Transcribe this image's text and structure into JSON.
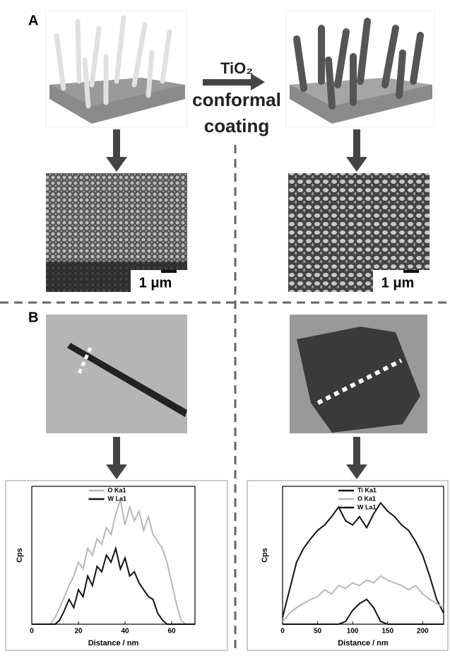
{
  "panel_a": {
    "label": "A",
    "process": "TiO₂",
    "process_line2": "conformal",
    "process_line3": "coating",
    "scale_left": "1 μm",
    "scale_right": "1 μm"
  },
  "panel_b": {
    "label": "B"
  },
  "chart_data": [
    {
      "type": "line",
      "xlabel": "Distance / nm",
      "ylabel": "Cps",
      "legend": "upper center",
      "x": [
        0,
        2,
        4,
        6,
        8,
        10,
        12,
        14,
        16,
        18,
        20,
        22,
        24,
        26,
        28,
        30,
        32,
        34,
        36,
        38,
        40,
        42,
        44,
        46,
        48,
        50,
        52,
        54,
        56,
        58,
        60,
        62,
        64,
        66,
        68,
        70
      ],
      "xlim": [
        0,
        70
      ],
      "xticks": [
        0,
        20,
        40,
        60
      ],
      "ylim": [
        0,
        100
      ],
      "series": [
        {
          "name": "O Ka1",
          "color": "#b8b8b8",
          "values": [
            0,
            0,
            0,
            0,
            0,
            5,
            12,
            20,
            28,
            35,
            45,
            40,
            55,
            50,
            62,
            58,
            70,
            65,
            80,
            90,
            72,
            85,
            75,
            82,
            68,
            78,
            65,
            60,
            55,
            45,
            30,
            15,
            3,
            0,
            0,
            0
          ]
        },
        {
          "name": "W La1",
          "color": "#111111",
          "values": [
            0,
            0,
            0,
            0,
            0,
            0,
            3,
            10,
            18,
            12,
            25,
            20,
            35,
            28,
            42,
            38,
            50,
            45,
            55,
            40,
            48,
            35,
            38,
            30,
            25,
            20,
            18,
            8,
            3,
            0,
            0,
            0,
            0,
            0,
            0,
            0
          ]
        }
      ]
    },
    {
      "type": "line",
      "xlabel": "Distance / nm",
      "ylabel": "Cps",
      "legend": "upper center",
      "x": [
        0,
        10,
        20,
        30,
        40,
        50,
        60,
        70,
        80,
        90,
        100,
        110,
        120,
        130,
        140,
        150,
        160,
        170,
        180,
        190,
        200,
        210,
        220,
        230
      ],
      "xlim": [
        0,
        230
      ],
      "xticks": [
        0,
        50,
        100,
        150,
        200
      ],
      "ylim": [
        0,
        100
      ],
      "series": [
        {
          "name": "Ti Ka1",
          "color": "#111111",
          "values": [
            5,
            25,
            45,
            55,
            62,
            68,
            72,
            78,
            85,
            75,
            72,
            78,
            70,
            80,
            88,
            82,
            78,
            72,
            68,
            60,
            50,
            35,
            18,
            8
          ]
        },
        {
          "name": "O Ka1",
          "color": "#b8b8b8",
          "values": [
            2,
            8,
            12,
            15,
            18,
            20,
            25,
            22,
            28,
            26,
            30,
            28,
            32,
            30,
            35,
            32,
            30,
            28,
            25,
            28,
            22,
            18,
            15,
            12
          ]
        },
        {
          "name": "W La1",
          "color": "#111111",
          "values": [
            0,
            0,
            0,
            0,
            0,
            0,
            0,
            0,
            0,
            2,
            10,
            15,
            18,
            12,
            2,
            0,
            0,
            0,
            0,
            0,
            0,
            0,
            0,
            0
          ]
        }
      ]
    }
  ]
}
